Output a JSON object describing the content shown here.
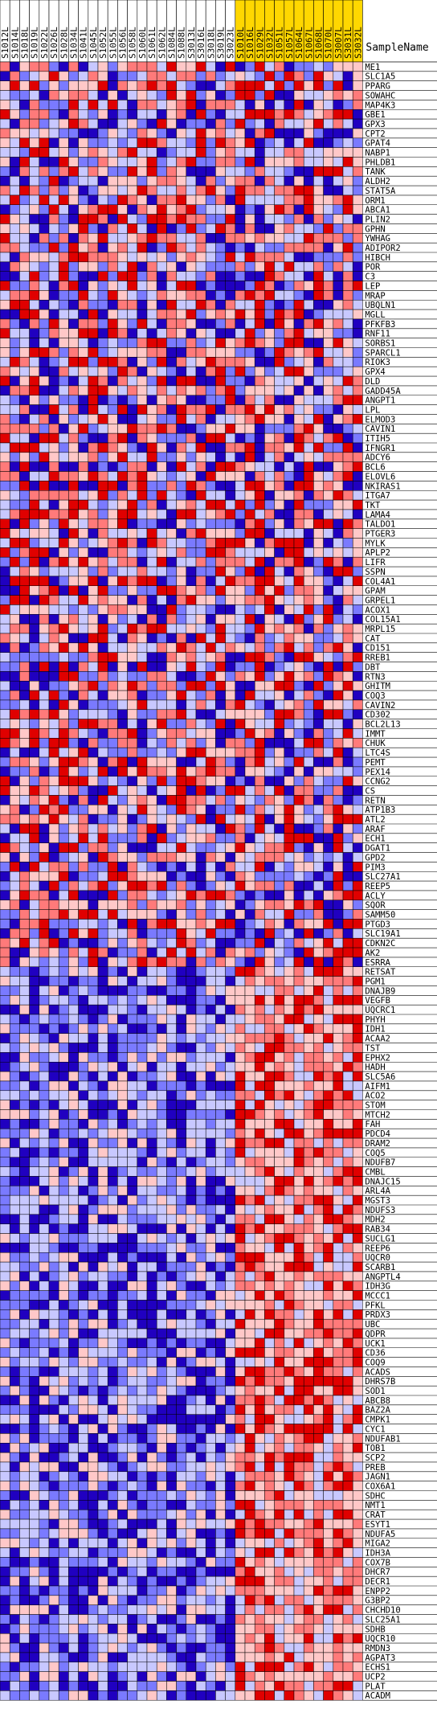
{
  "chart_data": {
    "type": "heatmap",
    "corner_label": "SampleName",
    "columns": [
      {
        "name": "S1012L",
        "group": "a"
      },
      {
        "name": "S1014L",
        "group": "a"
      },
      {
        "name": "S1018L",
        "group": "a"
      },
      {
        "name": "S1019L",
        "group": "a"
      },
      {
        "name": "S1022L",
        "group": "a"
      },
      {
        "name": "S1026L",
        "group": "a"
      },
      {
        "name": "S1028L",
        "group": "a"
      },
      {
        "name": "S1034L",
        "group": "a"
      },
      {
        "name": "S1041L",
        "group": "a"
      },
      {
        "name": "S1045L",
        "group": "a"
      },
      {
        "name": "S1052L",
        "group": "a"
      },
      {
        "name": "S1055L",
        "group": "a"
      },
      {
        "name": "S1056L",
        "group": "a"
      },
      {
        "name": "S1058L",
        "group": "a"
      },
      {
        "name": "S1060L",
        "group": "a"
      },
      {
        "name": "S1061L",
        "group": "a"
      },
      {
        "name": "S1062L",
        "group": "a"
      },
      {
        "name": "S1084L",
        "group": "a"
      },
      {
        "name": "S1088L",
        "group": "a"
      },
      {
        "name": "S3013L",
        "group": "a"
      },
      {
        "name": "S3016L",
        "group": "a"
      },
      {
        "name": "S3018L",
        "group": "a"
      },
      {
        "name": "S3019L",
        "group": "a"
      },
      {
        "name": "S3023L",
        "group": "a"
      },
      {
        "name": "S1010L",
        "group": "b"
      },
      {
        "name": "S1016L",
        "group": "b"
      },
      {
        "name": "S1029L",
        "group": "b"
      },
      {
        "name": "S1032L",
        "group": "b"
      },
      {
        "name": "S1051L",
        "group": "b"
      },
      {
        "name": "S1057L",
        "group": "b"
      },
      {
        "name": "S1064L",
        "group": "b"
      },
      {
        "name": "S1067L",
        "group": "b"
      },
      {
        "name": "S1068L",
        "group": "b"
      },
      {
        "name": "S1070L",
        "group": "b"
      },
      {
        "name": "S3007L",
        "group": "b"
      },
      {
        "name": "S3031L",
        "group": "b"
      },
      {
        "name": "S3032L",
        "group": "b"
      }
    ],
    "rows": [
      "ME1",
      "SLC1A5",
      "PPARG",
      "SOWAHC",
      "MAP4K3",
      "GBE1",
      "GPX3",
      "CPT2",
      "GPAT4",
      "NABP1",
      "PHLDB1",
      "TANK",
      "ALDH2",
      "STAT5A",
      "ORM1",
      "ABCA1",
      "PLIN2",
      "GPHN",
      "YWHAG",
      "ADIPOR2",
      "HIBCH",
      "POR",
      "C3",
      "LEP",
      "MRAP",
      "UBQLN1",
      "MGLL",
      "PFKFB3",
      "RNF11",
      "SORBS1",
      "SPARCL1",
      "RIOK3",
      "GPX4",
      "DLD",
      "GADD45A",
      "ANGPT1",
      "LPL",
      "ELMOD3",
      "CAVIN1",
      "ITIH5",
      "IFNGR1",
      "ADCY6",
      "BCL6",
      "ELOVL6",
      "NKIRAS1",
      "ITGA7",
      "TKT",
      "LAMA4",
      "TALDO1",
      "PTGER3",
      "MYLK",
      "APLP2",
      "LIFR",
      "SSPN",
      "COL4A1",
      "GPAM",
      "GRPEL1",
      "ACOX1",
      "COL15A1",
      "MRPL15",
      "CAT",
      "CD151",
      "RREB1",
      "DBT",
      "RTN3",
      "GHITM",
      "COQ3",
      "CAVIN2",
      "CD302",
      "BCL2L13",
      "IMMT",
      "CHUK",
      "LTC4S",
      "PEMT",
      "PEX14",
      "CCNG2",
      "CS",
      "RETN",
      "ATP1B3",
      "ATL2",
      "ARAF",
      "ECH1",
      "DGAT1",
      "GPD2",
      "PIM3",
      "SLC27A1",
      "REEP5",
      "ACLY",
      "SQOR",
      "SAMM50",
      "PTGD3",
      "SLC19A1",
      "CDKN2C",
      "AK2",
      "ESRRA",
      "RETSAT",
      "PGM1",
      "DNAJB9",
      "VEGFB",
      "UQCRC1",
      "PHYH",
      "IDH1",
      "ACAA2",
      "TST",
      "EPHX2",
      "HADH",
      "SLC5A6",
      "AIFM1",
      "ACO2",
      "STOM",
      "MTCH2",
      "FAH",
      "PDCD4",
      "DRAM2",
      "COQ5",
      "NDUFB7",
      "CMBL",
      "DNAJC15",
      "ARL4A",
      "MGST3",
      "NDUFS3",
      "MDH2",
      "RAB34",
      "SUCLG1",
      "REEP6",
      "UQCR0",
      "SCARB1",
      "ANGPTL4",
      "IDH3G",
      "MCCC1",
      "PFKL",
      "PRDX3",
      "UBC",
      "QDPR",
      "UCK1",
      "CD36",
      "COQ9",
      "ACADS",
      "DHRS7B",
      "SOD1",
      "ABCB8",
      "BAZ2A",
      "CMPK1",
      "CYC1",
      "NDUFAB1",
      "TOB1",
      "SCP2",
      "PREB",
      "JAGN1",
      "COX6A1",
      "SDHC",
      "NMT1",
      "CRAT",
      "ESYT1",
      "NDUFA5",
      "MIGA2",
      "IDH3A",
      "COX7B",
      "DHCR7",
      "DECR1",
      "ENPP2",
      "G3BP2",
      "CHCHD10",
      "SLC25A1",
      "SDHB",
      "UQCR10",
      "RMDN3",
      "AGPAT3",
      "ECHS1",
      "UCP2",
      "PLAT",
      "ACADM"
    ],
    "value_scale": {
      "low": "blue",
      "mid": "white",
      "high": "red"
    },
    "values_note_visible": false
  },
  "colors": {
    "group_a_header": "#ffffff",
    "group_b_header": "#ffd700",
    "strong_red": "#e00000",
    "mid_red": "#ff7a7a",
    "light_red": "#ffc8c8",
    "light_blue": "#c8c8ff",
    "mid_blue": "#7a7aff",
    "strong_blue": "#2000c0",
    "grid": "#000000"
  }
}
